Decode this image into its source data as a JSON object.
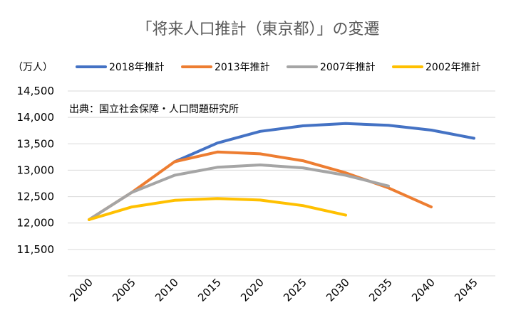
{
  "chart_data": {
    "type": "line",
    "title": "「将来人口推計（東京都）」の変遷",
    "unit_label": "（万人）",
    "source": "出典：国立社会保障・人口問題研究所",
    "x": [
      "2000",
      "2005",
      "2010",
      "2015",
      "2020",
      "2025",
      "2030",
      "2035",
      "2040",
      "2045"
    ],
    "ylim": [
      11000,
      14500
    ],
    "yticks": [
      "11,500",
      "12,000",
      "12,500",
      "13,000",
      "13,500",
      "14,000",
      "14,500"
    ],
    "ytick_values": [
      11500,
      12000,
      12500,
      13000,
      13500,
      14000,
      14500
    ],
    "grid": true,
    "legend_position": "top",
    "series": [
      {
        "name": "2018年推計",
        "color": "#4472c4",
        "values": [
          null,
          null,
          13160,
          13515,
          13735,
          13840,
          13885,
          13850,
          13760,
          13605
        ]
      },
      {
        "name": "2013年推計",
        "color": "#ed7d31",
        "values": [
          12065,
          12580,
          13160,
          13345,
          13310,
          13180,
          12950,
          12665,
          12305,
          null
        ]
      },
      {
        "name": "2007年推計",
        "color": "#a5a5a5",
        "values": [
          12065,
          12580,
          12905,
          13055,
          13100,
          13045,
          12905,
          12700,
          null,
          null
        ]
      },
      {
        "name": "2002年推計",
        "color": "#ffc000",
        "values": [
          12065,
          12305,
          12430,
          12465,
          12435,
          12330,
          12150,
          null,
          null,
          null
        ]
      }
    ]
  }
}
